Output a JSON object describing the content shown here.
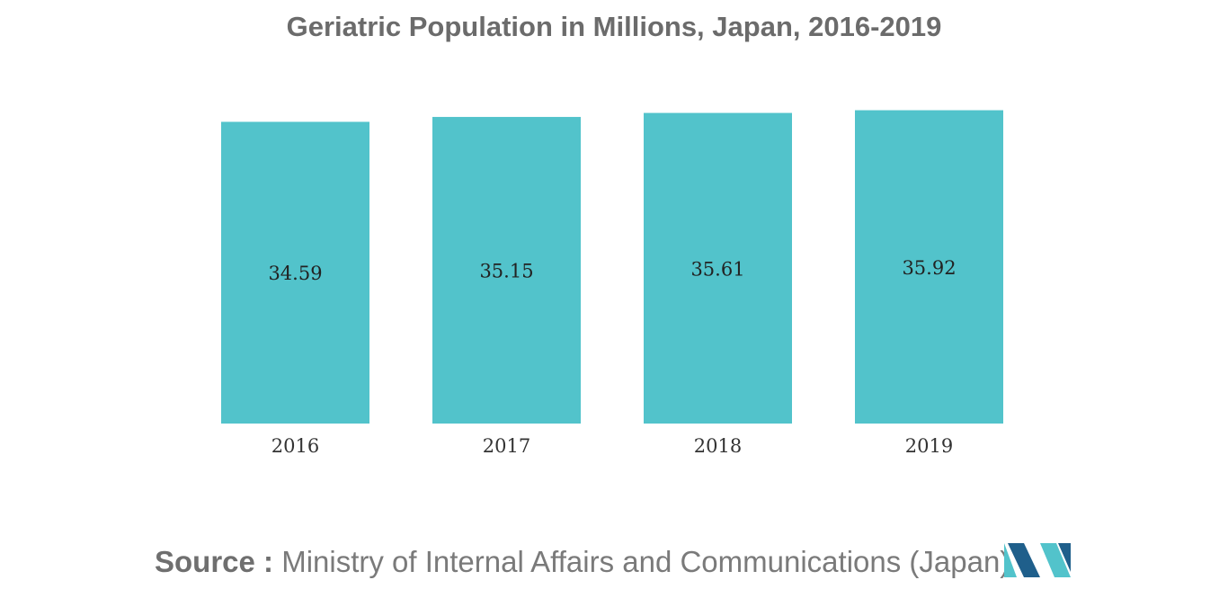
{
  "chart_data": {
    "type": "bar",
    "title": "Geriatric Population in Millions, Japan, 2016-2019",
    "categories": [
      "2016",
      "2017",
      "2018",
      "2019"
    ],
    "values": [
      34.59,
      35.15,
      35.61,
      35.92
    ],
    "value_labels": [
      "34.59",
      "35.15",
      "35.61",
      "35.92"
    ],
    "xlabel": "",
    "ylabel": "",
    "grid": false,
    "legend": "none",
    "bar_color": "#52c3cb"
  },
  "source": {
    "label": "Source :",
    "text": "Ministry of Internal Affairs and Communications (Japan)"
  },
  "logo": {
    "icon": "mordor-intelligence-logo",
    "colors": [
      "#1f5f8b",
      "#52c3cb"
    ]
  }
}
